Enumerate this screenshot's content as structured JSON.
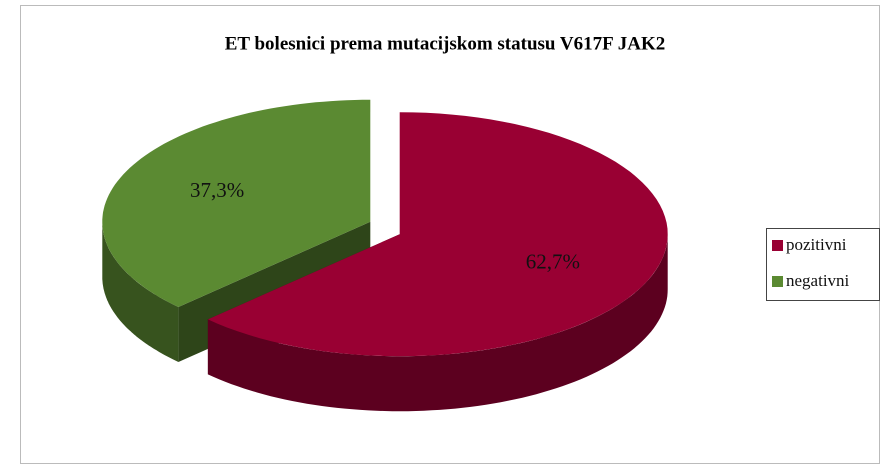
{
  "chart_data": {
    "type": "pie",
    "title": "ET bolesnici prema mutacijskom statusu V617F JAK2",
    "categories": [
      "pozitivni",
      "negativni"
    ],
    "values": [
      62.7,
      37.3
    ],
    "value_labels": [
      "62,7%",
      "37,3%"
    ],
    "colors": [
      "#990033",
      "#5b8a32"
    ],
    "legend": "right"
  }
}
